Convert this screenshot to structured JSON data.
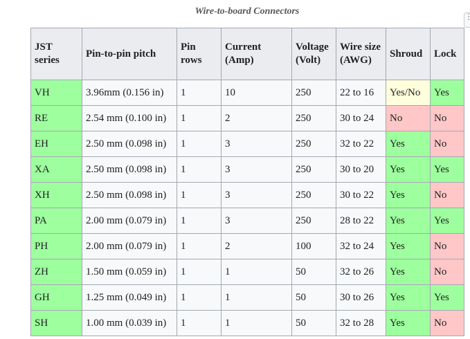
{
  "table": {
    "caption": "Wire-to-board Connectors",
    "headers": [
      "JST series",
      "Pin-to-pin pitch",
      "Pin rows",
      "Current (Amp)",
      "Voltage (Volt)",
      "Wire size (AWG)",
      "Shroud",
      "Lock"
    ],
    "rows": [
      [
        "VH",
        "3.96mm (0.156 in)",
        "1",
        "10",
        "250",
        "22 to 16",
        "Yes/No",
        "Yes"
      ],
      [
        "RE",
        "2.54 mm (0.100 in)",
        "1",
        "2",
        "250",
        "30 to 24",
        "No",
        "No"
      ],
      [
        "EH",
        "2.50 mm (0.098 in)",
        "1",
        "3",
        "250",
        "32 to 22",
        "Yes",
        "No"
      ],
      [
        "XA",
        "2.50 mm (0.098 in)",
        "1",
        "3",
        "250",
        "30 to 20",
        "Yes",
        "Yes"
      ],
      [
        "XH",
        "2.50 mm (0.098 in)",
        "1",
        "3",
        "250",
        "30 to 22",
        "Yes",
        "No"
      ],
      [
        "PA",
        "2.00 mm (0.079 in)",
        "1",
        "3",
        "250",
        "28 to 22",
        "Yes",
        "Yes"
      ],
      [
        "PH",
        "2.00 mm (0.079 in)",
        "1",
        "2",
        "100",
        "32 to 24",
        "Yes",
        "No"
      ],
      [
        "ZH",
        "1.50 mm (0.059 in)",
        "1",
        "1",
        "50",
        "32 to 26",
        "Yes",
        "No"
      ],
      [
        "GH",
        "1.25 mm (0.049 in)",
        "1",
        "1",
        "50",
        "30 to 26",
        "Yes",
        "Yes"
      ],
      [
        "SH",
        "1.00 mm (0.039 in)",
        "1",
        "1",
        "50",
        "32 to 28",
        "Yes",
        "No"
      ]
    ]
  },
  "colors": {
    "yes": "#9eff9e",
    "no": "#ffc7c7",
    "partial": "#ffffdd"
  },
  "icons": {
    "more": "more-vertical-icon"
  }
}
